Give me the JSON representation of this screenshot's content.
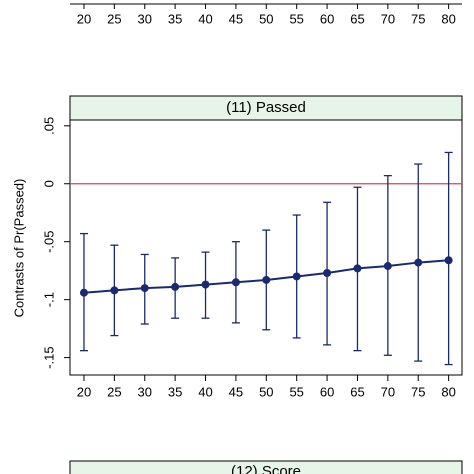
{
  "chart_data": [
    {
      "type": "line",
      "xlim": [
        17.7,
        82.2
      ],
      "xticks": [
        20,
        25,
        30,
        35,
        40,
        45,
        50,
        55,
        60,
        65,
        70,
        75,
        80
      ]
    },
    {
      "type": "line",
      "title": "(11) Passed",
      "y_label": "Contrasts of Pr(Passed)",
      "x": [
        20,
        25,
        30,
        35,
        40,
        45,
        50,
        55,
        60,
        65,
        70,
        75,
        80
      ],
      "series": [
        {
          "color": "#1a2a6c",
          "values": [
            -0.094,
            -0.092,
            -0.09,
            -0.089,
            -0.087,
            -0.085,
            -0.083,
            -0.08,
            -0.077,
            -0.073,
            -0.071,
            -0.068,
            -0.066
          ],
          "ci_upper": [
            -0.043,
            -0.053,
            -0.061,
            -0.064,
            -0.059,
            -0.05,
            -0.04,
            -0.027,
            -0.016,
            -0.003,
            0.007,
            0.017,
            0.027
          ],
          "ci_lower": [
            -0.144,
            -0.131,
            -0.121,
            -0.116,
            -0.116,
            -0.12,
            -0.126,
            -0.133,
            -0.139,
            -0.144,
            -0.148,
            -0.153,
            -0.156
          ]
        }
      ],
      "reference_line": {
        "value": 0,
        "color": "#e0424b"
      },
      "xlim": [
        17.7,
        82.2
      ],
      "xticks": [
        20,
        25,
        30,
        35,
        40,
        45,
        50,
        55,
        60,
        65,
        70,
        75,
        80
      ],
      "ylim": [
        -0.165,
        0.055
      ],
      "yticks": [
        {
          "value": 0.05,
          "label": ".05"
        },
        0,
        {
          "value": -0.05,
          "label": "-.05"
        },
        {
          "value": -0.1,
          "label": "-.1"
        },
        {
          "value": -0.15,
          "label": "-.15"
        }
      ],
      "header_color": "#e6f5e8"
    },
    {
      "type": "line",
      "title": "(12) Score",
      "header_color": "#e6f5e8"
    }
  ]
}
